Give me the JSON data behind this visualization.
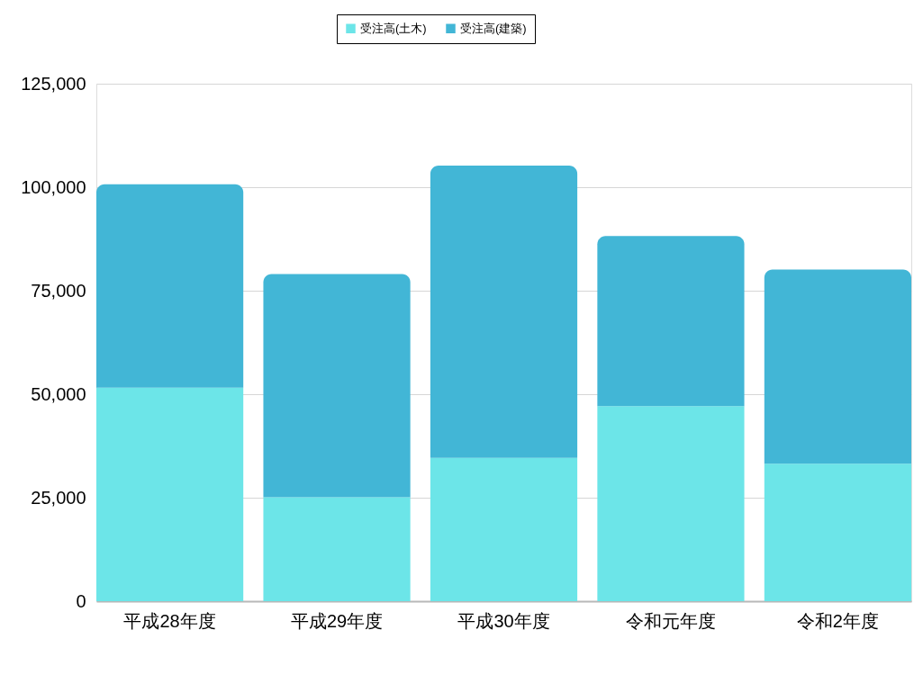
{
  "chart_data": {
    "type": "bar",
    "stacked": true,
    "categories": [
      "平成28年度",
      "平成29年度",
      "平成30年度",
      "令和元年度",
      "令和2年度"
    ],
    "series": [
      {
        "name": "受注高(土木)",
        "color": "#6ce5e8",
        "values": [
          51600,
          25100,
          34600,
          47100,
          33200
        ]
      },
      {
        "name": "受注高(建築)",
        "color": "#42b6d6",
        "values": [
          49100,
          53900,
          70600,
          41100,
          46900
        ]
      }
    ],
    "ylim": [
      0,
      125000
    ],
    "yticks": [
      0,
      {
        "value": 25000,
        "label": "25,000"
      },
      {
        "value": 50000,
        "label": "50,000"
      },
      {
        "value": 75000,
        "label": "75,000"
      },
      {
        "value": 100000,
        "label": "100,000"
      },
      {
        "value": 125000,
        "label": "125,000"
      }
    ],
    "grid": "y",
    "legend": "top"
  }
}
